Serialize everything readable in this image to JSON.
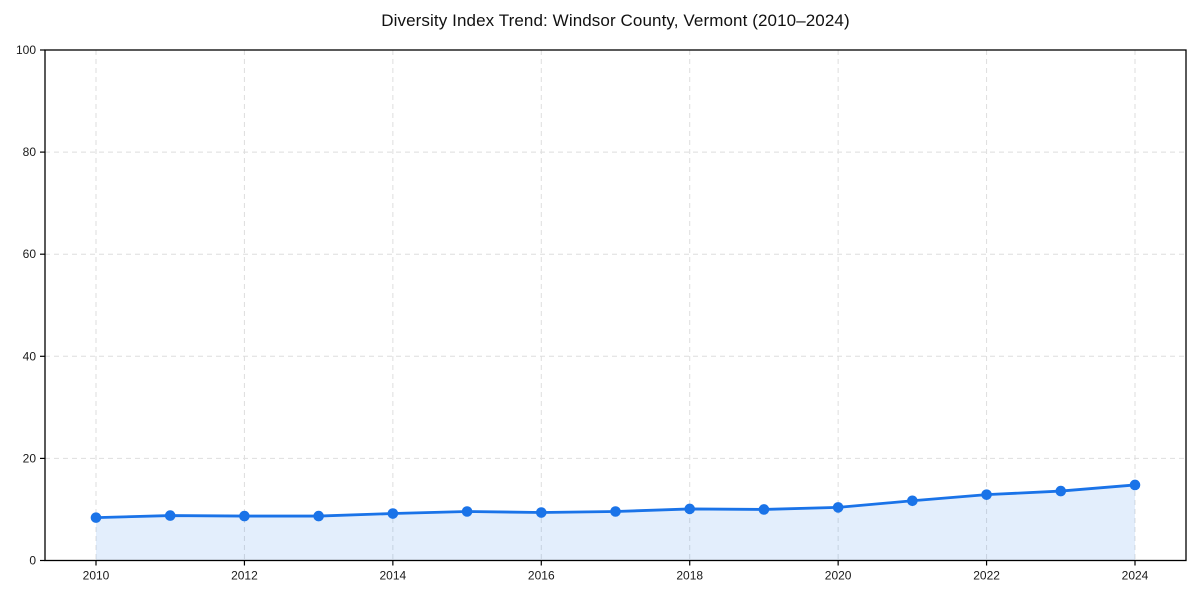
{
  "page": {
    "background": "#ffffff"
  },
  "chart_data": {
    "type": "line",
    "title": "Diversity Index Trend: Windsor County, Vermont (2010–2024)",
    "series": [
      {
        "name": "Diversity Index",
        "x": [
          2010,
          2011,
          2012,
          2013,
          2014,
          2015,
          2016,
          2017,
          2018,
          2019,
          2020,
          2021,
          2022,
          2023,
          2024
        ],
        "values": [
          8.4,
          8.8,
          8.7,
          8.7,
          9.2,
          9.6,
          9.4,
          9.6,
          10.1,
          10.0,
          10.4,
          11.7,
          12.9,
          13.6,
          14.8
        ]
      }
    ],
    "xlabel": "",
    "ylabel": "",
    "xticks": [
      2010,
      2012,
      2014,
      2016,
      2018,
      2020,
      2022,
      2024
    ],
    "yticks": [
      0,
      20,
      40,
      60,
      80,
      100
    ],
    "xlim": [
      2010,
      2024
    ],
    "ylim": [
      0,
      100
    ],
    "grid": "dashed",
    "legend_position": "none",
    "marker": "circle",
    "area_fill": true,
    "colors": {
      "line": "#1a73e8",
      "marker": "#1a73e8",
      "fill": "rgba(26,115,232,0.12)",
      "grid": "#dedede",
      "axis": "#000000",
      "tick_text": "#1a1a1a"
    }
  }
}
